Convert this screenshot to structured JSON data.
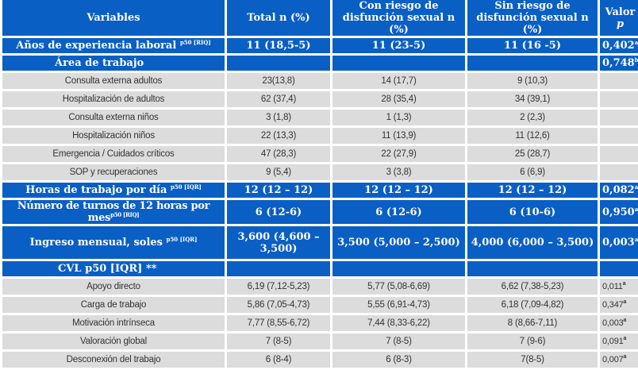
{
  "header": {
    "variables": "Variables",
    "total": "Total n (%)",
    "con_riesgo": "Con riesgo de disfunción sexual n (%)",
    "sin_riesgo": "Sin riesgo de disfunción sexual n (%)",
    "valor": "Valor",
    "p": "p"
  },
  "anios": {
    "label": "Años de experiencia laboral",
    "sup": "p50 [RIQ]",
    "total": "11 (18,5-5)",
    "con": "11 (23-5)",
    "sin": "11 (16 -5)",
    "p": "0,402",
    "psup": "a"
  },
  "area": {
    "label": "Área de trabajo",
    "p": "0,748",
    "psup": "b",
    "rows": [
      {
        "label": "Consulta externa adultos",
        "total": "23(13,8)",
        "con": "14 (17,7)",
        "sin": "9 (10,3)"
      },
      {
        "label": "Hospitalización de adultos",
        "total": "62 (37,4)",
        "con": "28 (35,4)",
        "sin": "34 (39,1)"
      },
      {
        "label": "Consulta externa niños",
        "total": "3 (1,8)",
        "con": "1 (1,3)",
        "sin": "2 (2,3)"
      },
      {
        "label": "Hospitalización niños",
        "total": "22 (13,3)",
        "con": "11 (13,9)",
        "sin": "11 (12,6)"
      },
      {
        "label": "Emergencia / Cuidados críticos",
        "total": "47 (28,3)",
        "con": "22 (27,9)",
        "sin": "25 (28,7)"
      },
      {
        "label": "SOP y recuperaciones",
        "total": "9 (5,4)",
        "con": "3 (3,8)",
        "sin": "6 (6,9)"
      }
    ]
  },
  "horas": {
    "label": "Horas de trabajo por día",
    "sup": "p50 [IQR]",
    "total": "12 (12 – 12)",
    "con": "12 (12 – 12)",
    "sin": "12 (12 – 12)",
    "p": "0,082",
    "psup": "a"
  },
  "turnos": {
    "label": "Número de turnos de 12 horas por mes",
    "sup": "p50 [RIQ]",
    "total": "6 (12-6)",
    "con": "6 (12-6)",
    "sin": "6 (10-6)",
    "p": "0,950",
    "psup": "a"
  },
  "ingreso": {
    "label": "Ingreso mensual, soles",
    "sup": "p50 [IQR]",
    "total": "3,600 (4,600 – 3,500)",
    "con": "3,500 (5,000 – 2,500)",
    "sin": "4,000 (6,000 – 3,500)",
    "p": "0,003",
    "psup": "a"
  },
  "cvl": {
    "label": "CVL p50 [IQR] **",
    "rows": [
      {
        "label": "Apoyo directo",
        "total": "6,19 (7,12-5,23)",
        "con": "5,77 (5,08-6,69)",
        "sin": "6,62 (7,38-5,23)",
        "p": "0,011",
        "psup": "a"
      },
      {
        "label": "Carga de trabajo",
        "total": "5,86 (7,05-4,73)",
        "con": "5,55 (6,91-4,73)",
        "sin": "6,18 (7,09-4,82)",
        "p": "0,347",
        "psup": "a"
      },
      {
        "label": "Motivación intrínseca",
        "total": "7,77 (8,55-6,72)",
        "con": "7,44 (8,33-6,22)",
        "sin": "8 (8,66-7,11)",
        "p": "0,003",
        "psup": "a"
      },
      {
        "label": "Valoración global",
        "total": "7 (8-5)",
        "con": "7 (8-5)",
        "sin": "7 (9-6)",
        "p": "0,091",
        "psup": "a"
      },
      {
        "label": "Desconexión del trabajo",
        "total": "6 (8-4)",
        "con": "6 (8-3)",
        "sin": "7(8-5)",
        "p": "0,007",
        "psup": "a"
      }
    ]
  }
}
